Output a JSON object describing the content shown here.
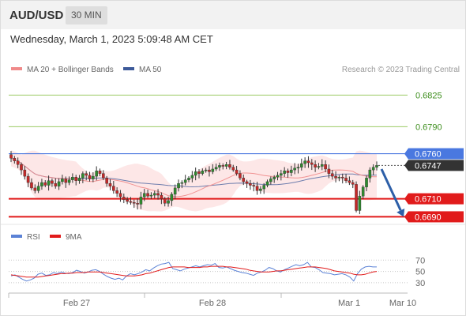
{
  "header": {
    "symbol": "AUD/USD",
    "timeframe": "30 MIN",
    "datetime": "Wednesday, March 1, 2023 5:09:48 AM CET"
  },
  "legend": {
    "ma20_label": "MA 20 + Bollinger Bands",
    "ma50_label": "MA 50",
    "copyright": "Research © 2023 Trading Central"
  },
  "colors": {
    "ma20": "#f08a8a",
    "ma50": "#3d5a99",
    "bands_fill": "#fde3e3",
    "resistance_green": "#9ccc65",
    "pivot_blue": "#4a78e0",
    "support_red": "#e11b1b",
    "candle_up": "#2e8b2e",
    "candle_down": "#c62828",
    "arrow": "#2d5fa8",
    "rsi": "#5b82d6",
    "rsi_ma": "#e11b1b"
  },
  "levels": [
    {
      "label": "0.6825",
      "value": 0.6825,
      "kind": "resistance"
    },
    {
      "label": "0.6790",
      "value": 0.679,
      "kind": "resistance"
    },
    {
      "label": "0.6760",
      "value": 0.676,
      "kind": "pivot"
    },
    {
      "label": "0.6710",
      "value": 0.671,
      "kind": "support"
    },
    {
      "label": "0.6690",
      "value": 0.669,
      "kind": "support"
    }
  ],
  "last_price": {
    "label": "0.6747",
    "value": 0.6747
  },
  "forecast_arrow": {
    "from": 0.6743,
    "to": 0.669
  },
  "rsi_panel": {
    "legend_rsi": "RSI",
    "legend_ma": "9MA",
    "ticks": [
      "70",
      "50",
      "30"
    ]
  },
  "x_axis": {
    "labels": [
      "Feb 27",
      "Feb 28",
      "Mar 1",
      "Mar 10"
    ]
  },
  "chart_data": {
    "type": "line",
    "title": "AUD/USD",
    "xlabel": "",
    "ylabel": "",
    "ylim": [
      0.6686,
      0.6842
    ],
    "price_close": [
      0.6755,
      0.6752,
      0.6748,
      0.6742,
      0.6735,
      0.6728,
      0.6722,
      0.6719,
      0.6724,
      0.6728,
      0.6725,
      0.673,
      0.6727,
      0.6724,
      0.6729,
      0.6732,
      0.6728,
      0.6731,
      0.6734,
      0.673,
      0.6733,
      0.6738,
      0.6736,
      0.6732,
      0.6735,
      0.6741,
      0.6738,
      0.6733,
      0.6727,
      0.6724,
      0.6719,
      0.6716,
      0.6712,
      0.6709,
      0.6707,
      0.6706,
      0.6705,
      0.6704,
      0.6712,
      0.6716,
      0.6713,
      0.6714,
      0.6716,
      0.6714,
      0.671,
      0.6705,
      0.6708,
      0.6715,
      0.6722,
      0.6727,
      0.6728,
      0.6731,
      0.6733,
      0.6736,
      0.674,
      0.6738,
      0.6741,
      0.6742,
      0.674,
      0.6743,
      0.6745,
      0.6747,
      0.6746,
      0.6748,
      0.6745,
      0.6742,
      0.6738,
      0.6733,
      0.6729,
      0.6727,
      0.6725,
      0.6724,
      0.6719,
      0.6721,
      0.6725,
      0.6729,
      0.6732,
      0.6734,
      0.6736,
      0.6738,
      0.6741,
      0.6739,
      0.6742,
      0.6744,
      0.6745,
      0.6749,
      0.6752,
      0.675,
      0.6748,
      0.6745,
      0.6746,
      0.6748,
      0.6743,
      0.6738,
      0.6735,
      0.6733,
      0.6734,
      0.6733,
      0.673,
      0.6728,
      0.6726,
      0.6697,
      0.6713,
      0.6723,
      0.6733,
      0.6742,
      0.6745,
      0.6747
    ],
    "rsi": [
      42,
      44,
      40,
      36,
      33,
      35,
      38,
      45,
      47,
      43,
      44,
      48,
      46,
      49,
      47,
      46,
      48,
      52,
      50,
      47,
      49,
      52,
      53,
      50,
      45,
      41,
      38,
      36,
      38,
      35,
      42,
      46,
      44,
      46,
      49,
      53,
      51,
      56,
      60,
      63,
      64,
      66,
      55,
      53,
      51,
      54,
      56,
      58,
      60,
      58,
      60,
      62,
      61,
      64,
      57,
      56,
      58,
      55,
      52,
      50,
      48,
      47,
      45,
      43,
      47,
      49,
      52,
      57,
      55,
      51,
      49,
      53,
      56,
      59,
      62,
      60,
      62,
      66,
      58,
      57,
      53,
      48,
      47,
      46,
      44,
      45,
      46,
      44,
      40,
      33,
      46,
      54,
      58,
      59,
      58,
      58
    ],
    "rsi_ma": [
      44,
      43,
      42,
      41,
      40,
      40,
      40,
      40,
      41,
      42,
      43,
      44,
      45,
      46,
      46,
      47,
      47,
      48,
      48,
      48,
      49,
      49,
      49,
      49,
      48,
      47,
      46,
      45,
      44,
      43,
      42,
      42,
      42,
      43,
      44,
      46,
      47,
      49,
      51,
      53,
      55,
      57,
      58,
      58,
      58,
      58,
      57,
      57,
      57,
      57,
      58,
      58,
      59,
      59,
      59,
      59,
      58,
      58,
      57,
      56,
      55,
      54,
      52,
      51,
      50,
      49,
      49,
      49,
      50,
      51,
      51,
      52,
      53,
      54,
      55,
      56,
      57,
      58,
      58,
      58,
      57,
      56,
      55,
      53,
      51,
      50,
      49,
      48,
      47,
      45,
      44,
      44,
      45,
      47,
      49,
      50
    ]
  }
}
